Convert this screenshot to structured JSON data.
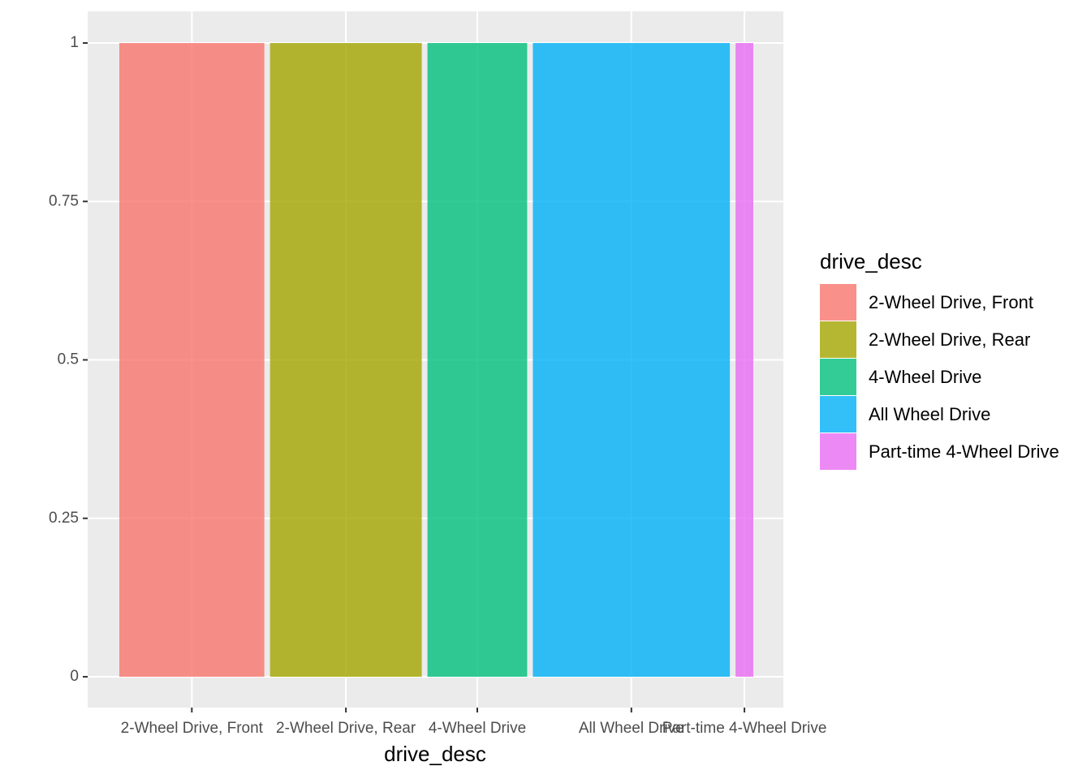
{
  "chart_data": {
    "type": "bar",
    "x_label": "drive_desc",
    "legend_title": "drive_desc",
    "categories": [
      "2-Wheel Drive, Front",
      "2-Wheel Drive, Rear",
      "4-Wheel Drive",
      "All Wheel Drive",
      "Part-time 4-Wheel Drive"
    ],
    "values": [
      1,
      1,
      1,
      1,
      1
    ],
    "widths": [
      0.237,
      0.248,
      0.163,
      0.322,
      0.029
    ],
    "colors": [
      "#F8766D",
      "#A3A500",
      "#00BF7D",
      "#00B0F6",
      "#E76BF3"
    ],
    "ylim": [
      0,
      1
    ],
    "yticks": [
      0,
      0.25,
      0.5,
      0.75,
      1
    ],
    "grid": true,
    "legend_position": "right"
  }
}
